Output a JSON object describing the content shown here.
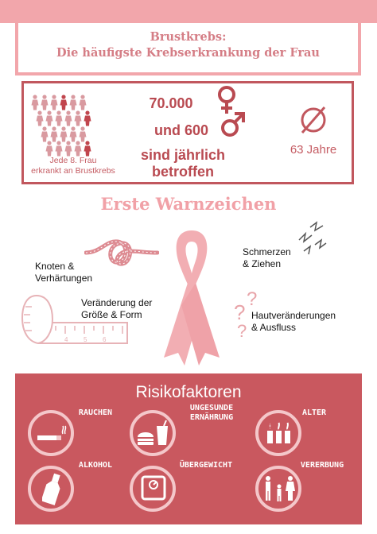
{
  "header": {
    "title_line1": "Brustkrebs:",
    "title_line2": "Die häufigste Krebserkrankung der Frau"
  },
  "stats": {
    "caption_line1": "Jede 8. Frau",
    "caption_line2": "erkrankt an Brustkrebs",
    "female_count": "70.000",
    "male_count": "und 600",
    "per_year_line1": "sind jährlich",
    "per_year_line2": "betroffen",
    "average_age": "63 Jahre",
    "female_icon": "female-symbol-icon",
    "male_icon": "male-symbol-icon",
    "average_icon": "average-symbol-icon"
  },
  "warning_signs": {
    "title": "Erste Warnzeichen",
    "items": [
      {
        "line1": "Knoten &",
        "line2": "Verhärtungen",
        "icon": "knot-icon"
      },
      {
        "line1": "Veränderung der",
        "line2": "Größe & Form",
        "icon": "measuring-tape-icon"
      },
      {
        "line1": "Schmerzen",
        "line2": "& Ziehen",
        "icon": "pain-lightning-icon"
      },
      {
        "line1": "Hautveränderungen",
        "line2": "& Ausfluss",
        "icon": "question-marks-icon"
      }
    ]
  },
  "risk_factors": {
    "title": "Risikofaktoren",
    "items": [
      {
        "line1": "RAUCHEN",
        "line2": "",
        "icon": "cigarette-icon"
      },
      {
        "line1": "UNGESUNDE",
        "line2": "ERNÄHRUNG",
        "icon": "fast-food-icon"
      },
      {
        "line1": "ALTER",
        "line2": "",
        "icon": "candles-icon"
      },
      {
        "line1": "ALKOHOL",
        "line2": "",
        "icon": "bottle-icon"
      },
      {
        "line1": "ÜBERGEWICHT",
        "line2": "",
        "icon": "scale-icon"
      },
      {
        "line1": "VERERBUNG",
        "line2": "",
        "icon": "family-icon"
      }
    ]
  },
  "colors": {
    "accent_light": "#f2a6ab",
    "accent_dark": "#c9585f",
    "text_red": "#b94a51"
  }
}
